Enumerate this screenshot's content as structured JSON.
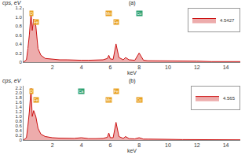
{
  "chart_data": [
    {
      "type": "line",
      "title": "(a)",
      "x_label": "keV",
      "y_label": "cps, eV",
      "x": [
        0,
        0.2,
        0.3,
        0.4,
        0.52,
        0.6,
        0.7,
        0.85,
        1.0,
        1.2,
        1.5,
        2.0,
        2.5,
        3.0,
        3.5,
        4.0,
        4.5,
        5.0,
        5.5,
        5.8,
        5.9,
        6.0,
        6.2,
        6.4,
        6.6,
        6.9,
        7.06,
        7.3,
        7.7,
        8.0,
        8.3,
        8.6,
        9.0,
        10.0,
        11.0,
        12.0,
        13.0,
        14.0,
        15.0
      ],
      "series": [
        {
          "name": "4.5427",
          "color": "#cc1010",
          "values": [
            0,
            0.05,
            0.3,
            0.6,
            1.1,
            0.7,
            0.95,
            0.8,
            0.3,
            0.15,
            0.08,
            0.06,
            0.05,
            0.05,
            0.04,
            0.04,
            0.04,
            0.04,
            0.05,
            0.08,
            0.15,
            0.07,
            0.06,
            0.4,
            0.1,
            0.05,
            0.1,
            0.05,
            0.04,
            0.2,
            0.04,
            0.03,
            0.03,
            0.02,
            0.02,
            0.02,
            0.01,
            0.01,
            0.01
          ]
        }
      ],
      "annotations": [
        {
          "text": "O",
          "x": 0.52,
          "color": "#e8a020"
        },
        {
          "text": "Fe",
          "x": 0.85,
          "color": "#e8a020"
        },
        {
          "text": "Mn",
          "x": 5.9,
          "color": "#e8a020"
        },
        {
          "text": "Fe",
          "x": 6.4,
          "color": "#e8a020"
        },
        {
          "text": "Cu",
          "x": 8.0,
          "color": "#2aa070"
        }
      ],
      "xlim": [
        0,
        15
      ],
      "xticks": [
        2,
        4,
        6,
        8,
        10,
        12,
        14
      ],
      "ylim": [
        0,
        1.2
      ],
      "yticks": [
        0,
        0.2,
        0.4,
        0.6,
        0.8,
        {
          "value": 1,
          "label": "1.0"
        },
        1.2
      ],
      "grid": false,
      "legend": "upper right"
    },
    {
      "type": "line",
      "title": "(b)",
      "x_label": "keV",
      "y_label": "cps, eV",
      "x": [
        0,
        0.2,
        0.3,
        0.4,
        0.52,
        0.6,
        0.7,
        0.85,
        1.0,
        1.2,
        1.5,
        2.0,
        2.5,
        3.0,
        3.5,
        4.0,
        4.5,
        5.0,
        5.5,
        5.8,
        5.9,
        6.0,
        6.2,
        6.4,
        6.6,
        6.9,
        7.06,
        7.3,
        7.7,
        8.0,
        8.3,
        8.6,
        9.0,
        10.0,
        11.0,
        12.0,
        13.0,
        14.0,
        15.0
      ],
      "series": [
        {
          "name": "4.565",
          "color": "#cc1010",
          "values": [
            0,
            0.1,
            0.6,
            1.2,
            2.2,
            1.0,
            1.25,
            1.0,
            0.5,
            0.25,
            0.15,
            0.1,
            0.08,
            0.07,
            0.07,
            0.1,
            0.06,
            0.06,
            0.07,
            0.12,
            0.3,
            0.1,
            0.1,
            0.75,
            0.15,
            0.07,
            0.15,
            0.06,
            0.05,
            0.1,
            0.04,
            0.04,
            0.03,
            0.03,
            0.02,
            0.02,
            0.02,
            0.01,
            0.01
          ]
        }
      ],
      "annotations": [
        {
          "text": "O",
          "x": 0.52,
          "color": "#e8a020"
        },
        {
          "text": "Fe",
          "x": 0.85,
          "color": "#e8a020"
        },
        {
          "text": "Ca",
          "x": 4.0,
          "color": "#2aa070"
        },
        {
          "text": "Mn",
          "x": 5.9,
          "color": "#e8a020"
        },
        {
          "text": "Fe",
          "x": 6.4,
          "color": "#e8a020"
        },
        {
          "text": "Cu",
          "x": 8.0,
          "color": "#e8a020"
        }
      ],
      "xlim": [
        0,
        15
      ],
      "xticks": [
        2,
        4,
        6,
        8,
        10,
        12,
        14
      ],
      "ylim": [
        0,
        2.3
      ],
      "yticks": [
        0,
        0.2,
        0.4,
        0.6,
        0.8,
        {
          "value": 1,
          "label": "1.0"
        },
        1.2,
        1.4,
        1.6,
        1.8,
        {
          "value": 2,
          "label": "2.0"
        },
        2.2
      ],
      "grid": false,
      "legend": "upper right"
    }
  ]
}
